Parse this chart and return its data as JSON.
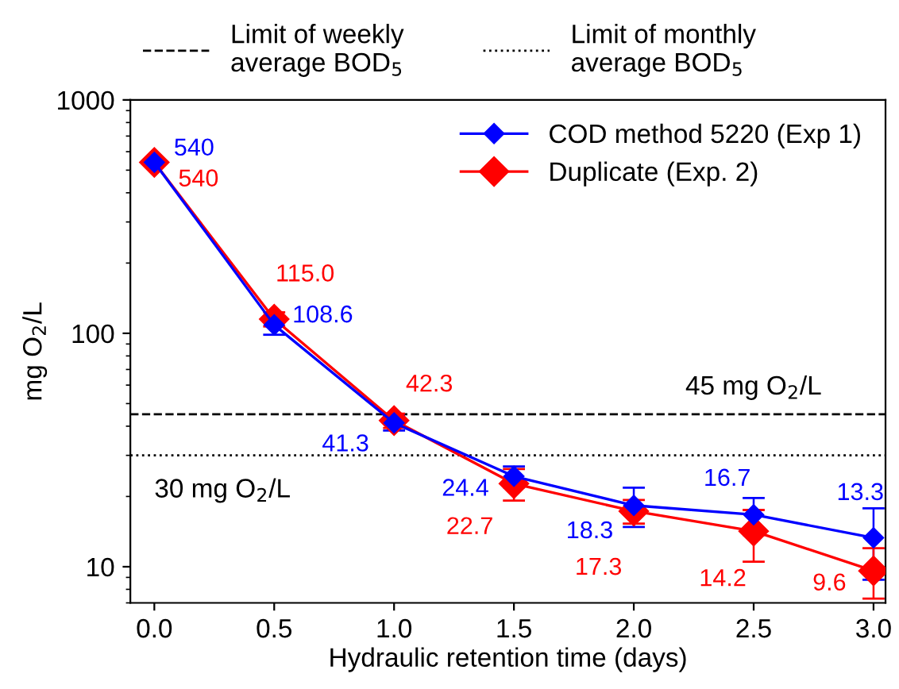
{
  "chart_data": {
    "type": "line",
    "xlabel": "Hydraulic retention time (days)",
    "ylabel": "mg O$_{2}$/L",
    "x": [
      0,
      0.5,
      1,
      1.5,
      2,
      2.5,
      3
    ],
    "series": [
      {
        "name": "COD method 5220 (Exp 1)",
        "color": "#0000ff",
        "values": [
          540,
          108.6,
          41.3,
          24.4,
          18.3,
          16.7,
          13.3
        ],
        "errors": [
          null,
          10,
          3,
          2.5,
          3.5,
          3,
          4.5
        ],
        "value_labels": [
          "540",
          "108.6",
          "41.3",
          "24.4",
          "18.3",
          "16.7",
          "13.3"
        ]
      },
      {
        "name": "Duplicate (Exp. 2)",
        "color": "#ff0000",
        "values": [
          540,
          115.0,
          42.3,
          22.7,
          17.3,
          14.2,
          9.6
        ],
        "errors": [
          null,
          8,
          3,
          3.5,
          2,
          [
            10.5,
            17.5
          ],
          [
            7.3,
            12
          ]
        ],
        "value_labels": [
          "540",
          "115.0",
          "42.3",
          "22.7",
          "17.3",
          "14.2",
          "9.6"
        ]
      }
    ],
    "marker": "diamond",
    "line_style": "solid",
    "legend": "top right",
    "log": true,
    "xlim": [
      -0.1,
      3.05
    ],
    "xticks": [
      {
        "value": 0,
        "label": "0.0"
      },
      {
        "value": 0.5,
        "label": "0.5"
      },
      {
        "value": 1,
        "label": "1.0"
      },
      {
        "value": 1.5,
        "label": "1.5"
      },
      {
        "value": 2,
        "label": "2.0"
      },
      {
        "value": 2.5,
        "label": "2.5"
      },
      {
        "value": 3,
        "label": "3.0"
      }
    ],
    "ylim": [
      7,
      1000
    ],
    "yticks": [
      10,
      100,
      1000
    ],
    "grid": false,
    "ref_lines": [
      {
        "axis": "y",
        "value": 45,
        "label": "Limit of weekly\naverage BOD$_{5}$",
        "color": "#000000",
        "line_style": "dashed"
      },
      {
        "axis": "y",
        "value": 30,
        "label": "Limit of monthly\naverage BOD$_{5}$",
        "color": "#000000",
        "line_style": "dotted"
      }
    ],
    "annotations": [
      {
        "text": "45 mg O$_{2}$/L",
        "x": 2.5,
        "y": 45
      },
      {
        "text": "30 mg O$_{2}$/L",
        "x": 0,
        "y": 30
      }
    ]
  }
}
